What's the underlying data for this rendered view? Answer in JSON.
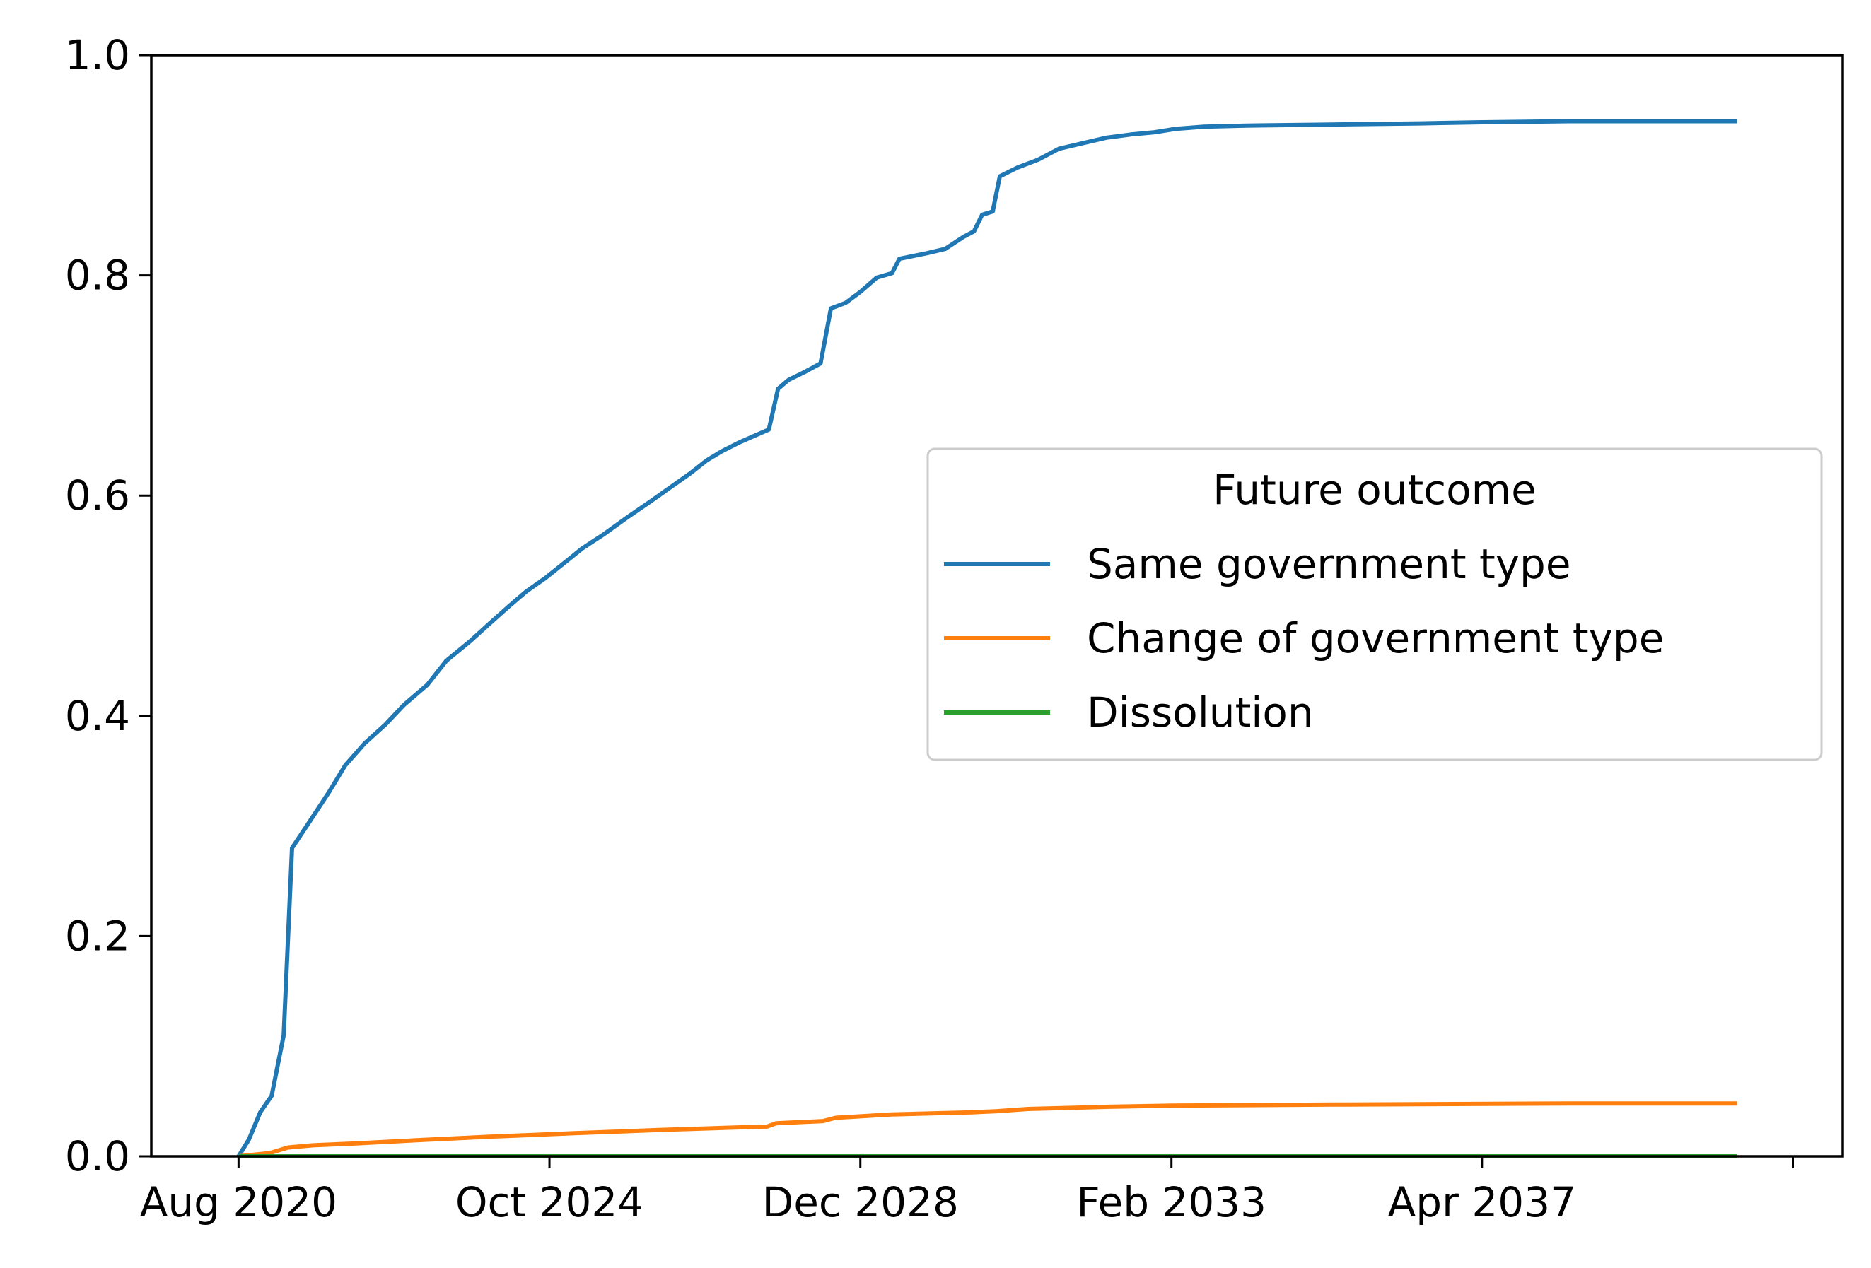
{
  "chart_data": {
    "type": "line",
    "title": "",
    "xlabel": "",
    "ylabel": "",
    "x_type": "date",
    "xlim": [
      "2019-06-01",
      "2042-01-31"
    ],
    "ylim": [
      0,
      1
    ],
    "x_ticks": [
      {
        "date": "2020-08-01",
        "label": "Aug 2020"
      },
      {
        "date": "2024-10-01",
        "label": "Oct 2024"
      },
      {
        "date": "2028-12-01",
        "label": "Dec 2028"
      },
      {
        "date": "2033-02-01",
        "label": "Feb 2033"
      },
      {
        "date": "2037-04-01",
        "label": "Apr 2037"
      },
      {
        "date": "2041-06-01",
        "label": ""
      }
    ],
    "y_ticks": [
      {
        "value": 0.0,
        "label": "0.0"
      },
      {
        "value": 0.2,
        "label": "0.2"
      },
      {
        "value": 0.4,
        "label": "0.4"
      },
      {
        "value": 0.6,
        "label": "0.6"
      },
      {
        "value": 0.8,
        "label": "0.8"
      },
      {
        "value": 1.0,
        "label": "1.0"
      }
    ],
    "grid": false,
    "legend": {
      "title": "Future outcome",
      "position": "center-right"
    },
    "series": [
      {
        "name": "Same government type",
        "color": "#1f77b4",
        "points": [
          [
            "2020-08-01",
            0.0
          ],
          [
            "2020-09-20",
            0.015
          ],
          [
            "2020-11-15",
            0.04
          ],
          [
            "2021-01-10",
            0.055
          ],
          [
            "2021-03-10",
            0.11
          ],
          [
            "2021-04-20",
            0.28
          ],
          [
            "2021-07-01",
            0.3
          ],
          [
            "2021-10-15",
            0.33
          ],
          [
            "2022-01-05",
            0.355
          ],
          [
            "2022-04-10",
            0.375
          ],
          [
            "2022-07-20",
            0.392
          ],
          [
            "2022-10-20",
            0.41
          ],
          [
            "2023-02-10",
            0.428
          ],
          [
            "2023-05-15",
            0.45
          ],
          [
            "2023-09-10",
            0.468
          ],
          [
            "2023-12-20",
            0.485
          ],
          [
            "2024-03-20",
            0.5
          ],
          [
            "2024-06-10",
            0.513
          ],
          [
            "2024-09-10",
            0.525
          ],
          [
            "2024-12-20",
            0.54
          ],
          [
            "2025-03-10",
            0.552
          ],
          [
            "2025-06-25",
            0.565
          ],
          [
            "2025-10-15",
            0.58
          ],
          [
            "2026-02-10",
            0.595
          ],
          [
            "2026-05-20",
            0.608
          ],
          [
            "2026-08-20",
            0.62
          ],
          [
            "2026-11-10",
            0.632
          ],
          [
            "2027-01-20",
            0.64
          ],
          [
            "2027-04-15",
            0.648
          ],
          [
            "2027-07-10",
            0.655
          ],
          [
            "2027-09-10",
            0.66
          ],
          [
            "2027-10-25",
            0.697
          ],
          [
            "2027-12-15",
            0.705
          ],
          [
            "2028-03-01",
            0.712
          ],
          [
            "2028-05-20",
            0.72
          ],
          [
            "2028-07-10",
            0.77
          ],
          [
            "2028-09-20",
            0.775
          ],
          [
            "2028-12-01",
            0.785
          ],
          [
            "2029-02-20",
            0.798
          ],
          [
            "2029-05-05",
            0.802
          ],
          [
            "2029-06-10",
            0.815
          ],
          [
            "2029-10-20",
            0.82
          ],
          [
            "2030-01-20",
            0.824
          ],
          [
            "2030-04-20",
            0.835
          ],
          [
            "2030-06-10",
            0.84
          ],
          [
            "2030-07-20",
            0.855
          ],
          [
            "2030-09-10",
            0.858
          ],
          [
            "2030-10-15",
            0.89
          ],
          [
            "2031-01-10",
            0.898
          ],
          [
            "2031-04-20",
            0.905
          ],
          [
            "2031-08-01",
            0.915
          ],
          [
            "2031-11-25",
            0.92
          ],
          [
            "2032-03-20",
            0.925
          ],
          [
            "2032-07-20",
            0.928
          ],
          [
            "2032-11-10",
            0.93
          ],
          [
            "2033-02-20",
            0.933
          ],
          [
            "2033-07-10",
            0.935
          ],
          [
            "2034-02-01",
            0.936
          ],
          [
            "2035-04-01",
            0.937
          ],
          [
            "2036-06-01",
            0.938
          ],
          [
            "2037-04-01",
            0.939
          ],
          [
            "2038-06-01",
            0.94
          ],
          [
            "2040-09-01",
            0.94
          ]
        ]
      },
      {
        "name": "Change of government type",
        "color": "#ff7f0e",
        "points": [
          [
            "2020-08-01",
            0.0
          ],
          [
            "2021-01-01",
            0.003
          ],
          [
            "2021-04-01",
            0.008
          ],
          [
            "2021-08-01",
            0.01
          ],
          [
            "2022-04-01",
            0.012
          ],
          [
            "2023-02-01",
            0.015
          ],
          [
            "2024-01-01",
            0.018
          ],
          [
            "2025-02-01",
            0.021
          ],
          [
            "2026-04-01",
            0.024
          ],
          [
            "2027-03-01",
            0.026
          ],
          [
            "2027-09-01",
            0.027
          ],
          [
            "2027-10-15",
            0.03
          ],
          [
            "2028-06-01",
            0.032
          ],
          [
            "2028-08-01",
            0.035
          ],
          [
            "2029-05-01",
            0.038
          ],
          [
            "2030-06-01",
            0.04
          ],
          [
            "2030-10-01",
            0.041
          ],
          [
            "2031-03-01",
            0.043
          ],
          [
            "2032-04-01",
            0.045
          ],
          [
            "2033-02-01",
            0.046
          ],
          [
            "2035-04-01",
            0.047
          ],
          [
            "2038-06-01",
            0.048
          ],
          [
            "2040-09-01",
            0.048
          ]
        ]
      },
      {
        "name": "Dissolution",
        "color": "#2ca02c",
        "points": [
          [
            "2020-08-01",
            0.0
          ],
          [
            "2040-09-01",
            0.0
          ]
        ]
      }
    ]
  }
}
